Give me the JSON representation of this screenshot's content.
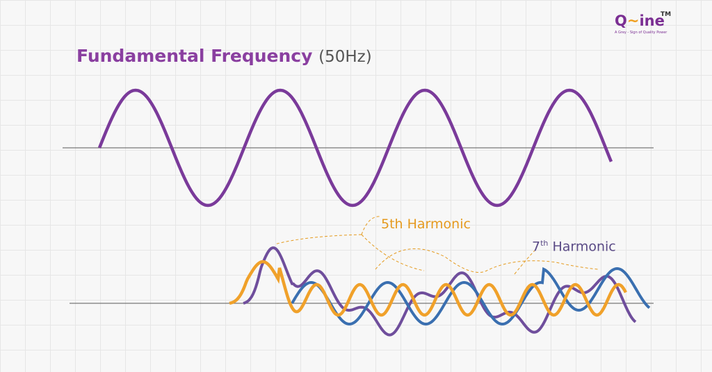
{
  "logo": {
    "prefix": "Q",
    "suffix": "ine",
    "trademark": "TM",
    "tagline": "A Grey - Sign of Quality Power"
  },
  "title": {
    "main": "Fundamental Frequency",
    "note": "(50Hz)"
  },
  "harmonics": [
    {
      "label": "5th Harmonic"
    },
    {
      "ordinal": "7",
      "suffix": "th",
      "word": "Harmonic"
    }
  ]
}
